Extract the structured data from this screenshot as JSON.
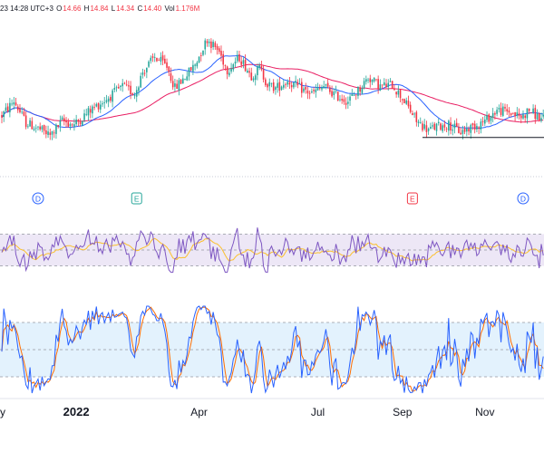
{
  "header": {
    "timestamp": "23 14:28 UTC+3",
    "open_label": "O",
    "open_value": "14.66",
    "high_label": "H",
    "high_value": "14.84",
    "low_label": "L",
    "low_value": "14.34",
    "close_label": "C",
    "close_value": "14.40",
    "vol_label": "Vol",
    "vol_value": "1.176M"
  },
  "colors": {
    "up": "#26a69a",
    "down": "#f23645",
    "sma_fast": "#2962ff",
    "sma_slow": "#e91e63",
    "rsi_line": "#7e57c2",
    "rsi_ma": "#fbc02d",
    "rsi_band": "#ede7f6",
    "stoch_k": "#2962ff",
    "stoch_d": "#ff6d00",
    "stoch_band": "#e3f2fd",
    "marker_dividend": "#2962ff",
    "marker_earnings_pos": "#26a69a",
    "marker_earnings_neg": "#f23645"
  },
  "event_markers": [
    {
      "letter": "D",
      "kind": "dividend",
      "x_index": 18
    },
    {
      "letter": "E",
      "kind": "earnings-positive",
      "x_index": 67
    },
    {
      "letter": "E",
      "kind": "earnings-negative",
      "x_index": 204
    },
    {
      "letter": "D",
      "kind": "dividend",
      "x_index": 259
    }
  ],
  "time_axis": {
    "labels": [
      {
        "text": "y",
        "x_index": 0,
        "bold": false
      },
      {
        "text": "2022",
        "x_index": 37,
        "bold": true
      },
      {
        "text": "Apr",
        "x_index": 98,
        "bold": false
      },
      {
        "text": "Jul",
        "x_index": 157,
        "bold": false
      },
      {
        "text": "Sep",
        "x_index": 199,
        "bold": false
      },
      {
        "text": "Nov",
        "x_index": 240,
        "bold": false
      }
    ]
  },
  "chart_data": {
    "type": "line",
    "panes": [
      {
        "name": "price",
        "kind": "candlestick",
        "ylim": [
          8.2,
          16.0
        ]
      },
      {
        "name": "rsi",
        "kind": "line",
        "ylim": [
          0,
          100
        ],
        "bands": [
          30,
          50,
          70
        ]
      },
      {
        "name": "stochastic",
        "kind": "line",
        "ylim": [
          0,
          100
        ],
        "bands": [
          20,
          80
        ]
      }
    ],
    "price_keypoints": [
      [
        0,
        11.4
      ],
      [
        6,
        12.2
      ],
      [
        12,
        11.0
      ],
      [
        18,
        10.7
      ],
      [
        24,
        10.3
      ],
      [
        30,
        11.1
      ],
      [
        36,
        10.9
      ],
      [
        44,
        11.7
      ],
      [
        52,
        12.3
      ],
      [
        60,
        13.0
      ],
      [
        66,
        12.6
      ],
      [
        70,
        13.8
      ],
      [
        76,
        14.6
      ],
      [
        82,
        14.1
      ],
      [
        86,
        12.9
      ],
      [
        90,
        13.4
      ],
      [
        96,
        14.2
      ],
      [
        102,
        15.6
      ],
      [
        108,
        14.9
      ],
      [
        112,
        13.9
      ],
      [
        118,
        14.6
      ],
      [
        124,
        13.6
      ],
      [
        128,
        14.0
      ],
      [
        132,
        13.1
      ],
      [
        136,
        12.9
      ],
      [
        142,
        13.3
      ],
      [
        148,
        12.9
      ],
      [
        154,
        12.6
      ],
      [
        160,
        13.0
      ],
      [
        166,
        12.5
      ],
      [
        172,
        12.2
      ],
      [
        178,
        12.9
      ],
      [
        182,
        13.5
      ],
      [
        188,
        13.0
      ],
      [
        194,
        13.1
      ],
      [
        200,
        12.2
      ],
      [
        206,
        11.1
      ],
      [
        212,
        10.6
      ],
      [
        216,
        10.8
      ],
      [
        222,
        10.9
      ],
      [
        228,
        10.5
      ],
      [
        234,
        10.8
      ],
      [
        240,
        11.1
      ],
      [
        246,
        11.7
      ],
      [
        252,
        11.6
      ],
      [
        258,
        11.3
      ],
      [
        262,
        11.7
      ],
      [
        268,
        11.2
      ]
    ],
    "support_level": 10.2,
    "support_start_index": 209
  }
}
